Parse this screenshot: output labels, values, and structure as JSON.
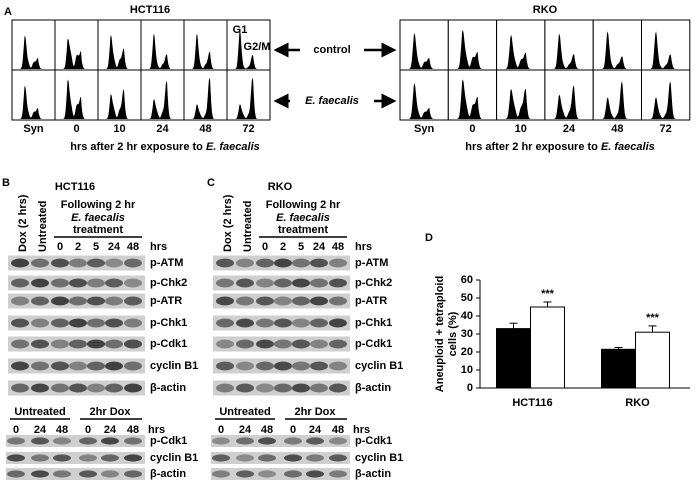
{
  "panel_a": {
    "label": "A",
    "cell_lines": [
      {
        "name": "HCT116",
        "timepoints": [
          "Syn",
          "0",
          "10",
          "24",
          "48",
          "72"
        ]
      },
      {
        "name": "RKO",
        "timepoints": [
          "Syn",
          "0",
          "10",
          "24",
          "48",
          "72"
        ]
      }
    ],
    "row_labels": [
      "control",
      "E. faecalis"
    ],
    "peak_labels": [
      "G1",
      "G2/M"
    ],
    "caption": {
      "prefix": "hrs after 2 hr exposure to",
      "species": "E. faecalis"
    }
  },
  "panel_b": {
    "label": "B",
    "cell_line": "HCT116",
    "lane_labels": [
      "Dox (2 hrs)",
      "Untreated"
    ],
    "treatment": [
      "Following 2 hr",
      "E. faecalis",
      "treatment"
    ],
    "timepoints": [
      "0",
      "2",
      "5",
      "24",
      "48"
    ],
    "unit": "hrs",
    "proteins": [
      "p-ATM",
      "p-Chk2",
      "p-ATR",
      "p-Chk1",
      "p-Cdk1",
      "cyclin B1",
      "β-actin"
    ],
    "lower": {
      "groups": [
        "Untreated",
        "2hr Dox"
      ],
      "timepoints": [
        "0",
        "24",
        "48",
        "0",
        "24",
        "48"
      ],
      "unit": "hrs",
      "proteins": [
        "p-Cdk1",
        "cyclin B1",
        "β-actin"
      ]
    }
  },
  "panel_c": {
    "label": "C",
    "cell_line": "RKO",
    "lane_labels": [
      "Dox (2 hrs)",
      "Untreated"
    ],
    "treatment": [
      "Following 2 hr",
      "E. faecalis",
      "treatment"
    ],
    "timepoints": [
      "0",
      "2",
      "5",
      "24",
      "48"
    ],
    "unit": "hrs",
    "proteins": [
      "p-ATM",
      "p-Chk2",
      "p-ATR",
      "p-Chk1",
      "p-Cdk1",
      "cyclin B1",
      "β-actin"
    ],
    "lower": {
      "groups": [
        "Untreated",
        "2hr Dox"
      ],
      "timepoints": [
        "0",
        "24",
        "48",
        "0",
        "24",
        "48"
      ],
      "unit": "hrs",
      "proteins": [
        "p-Cdk1",
        "cyclin B1",
        "β-actin"
      ]
    }
  },
  "chart_data": {
    "type": "bar",
    "label": "D",
    "y_label": [
      "Aneuploid + tetraploid",
      "cells (%)"
    ],
    "categories": [
      "HCT116",
      "RKO"
    ],
    "series": [
      {
        "color": "#000000",
        "values": [
          33,
          21.5
        ],
        "errors": [
          3,
          1
        ]
      },
      {
        "color": "#ffffff",
        "values": [
          45,
          31
        ],
        "errors": [
          2.8,
          3.5
        ],
        "significance": [
          "***",
          "***"
        ]
      }
    ],
    "ylim": [
      0,
      60
    ],
    "yticks": [
      0,
      10,
      20,
      30,
      40,
      50,
      60
    ]
  }
}
